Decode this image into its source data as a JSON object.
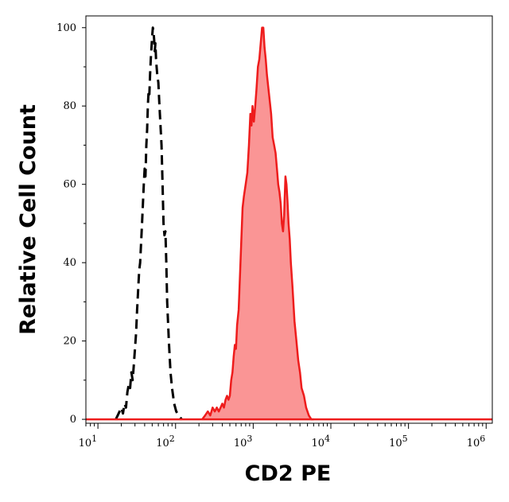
{
  "chart_data": {
    "type": "area",
    "xlabel": "CD2 PE",
    "ylabel": "Relative Cell Count",
    "x_scale": "log",
    "xlim": [
      7,
      1200000
    ],
    "ylim": [
      -1,
      103
    ],
    "x_ticks": [
      {
        "base": "10",
        "exp": "1",
        "value": 10
      },
      {
        "base": "10",
        "exp": "2",
        "value": 100
      },
      {
        "base": "10",
        "exp": "3",
        "value": 1000
      },
      {
        "base": "10",
        "exp": "4",
        "value": 10000
      },
      {
        "base": "10",
        "exp": "5",
        "value": 100000
      },
      {
        "base": "10",
        "exp": "6",
        "value": 1000000
      }
    ],
    "y_ticks": [
      {
        "label": "0",
        "value": 0
      },
      {
        "label": "20",
        "value": 20
      },
      {
        "label": "40",
        "value": 40
      },
      {
        "label": "60",
        "value": 60
      },
      {
        "label": "80",
        "value": 80
      },
      {
        "label": "100",
        "value": 100
      }
    ],
    "grid": false,
    "legend": "none",
    "series": [
      {
        "style": "dashed",
        "color": "#000000",
        "fill": "none",
        "points": [
          [
            17,
            0
          ],
          [
            18,
            1
          ],
          [
            19,
            2
          ],
          [
            20,
            3
          ],
          [
            21,
            1.5
          ],
          [
            22,
            4
          ],
          [
            23,
            3
          ],
          [
            24,
            7
          ],
          [
            25,
            9
          ],
          [
            26,
            8
          ],
          [
            27,
            12
          ],
          [
            28,
            10
          ],
          [
            29,
            14
          ],
          [
            30,
            18
          ],
          [
            31,
            22
          ],
          [
            32,
            28
          ],
          [
            33,
            33
          ],
          [
            34,
            38
          ],
          [
            35,
            40
          ],
          [
            36,
            45
          ],
          [
            37,
            50
          ],
          [
            38,
            55
          ],
          [
            39,
            60
          ],
          [
            40,
            64
          ],
          [
            41,
            62
          ],
          [
            42,
            70
          ],
          [
            43,
            74
          ],
          [
            44,
            80
          ],
          [
            45,
            84
          ],
          [
            46,
            83
          ],
          [
            47,
            88
          ],
          [
            48,
            92
          ],
          [
            49,
            95
          ],
          [
            50,
            98
          ],
          [
            51,
            100
          ],
          [
            52,
            99
          ],
          [
            53,
            97
          ],
          [
            54,
            94
          ],
          [
            55,
            96
          ],
          [
            56,
            92
          ],
          [
            57,
            90
          ],
          [
            58,
            88
          ],
          [
            60,
            86
          ],
          [
            62,
            80
          ],
          [
            64,
            75
          ],
          [
            66,
            70
          ],
          [
            68,
            60
          ],
          [
            70,
            50
          ],
          [
            72,
            47
          ],
          [
            74,
            48
          ],
          [
            76,
            40
          ],
          [
            78,
            30
          ],
          [
            82,
            20
          ],
          [
            86,
            12
          ],
          [
            90,
            8
          ],
          [
            96,
            4
          ],
          [
            102,
            2
          ],
          [
            110,
            1
          ],
          [
            120,
            0
          ]
        ]
      },
      {
        "style": "solid",
        "color": "#ee1c1c",
        "fill": "#fa9595",
        "points": [
          [
            220,
            0
          ],
          [
            240,
            1
          ],
          [
            260,
            2
          ],
          [
            280,
            1
          ],
          [
            300,
            3
          ],
          [
            320,
            2
          ],
          [
            340,
            3
          ],
          [
            360,
            2
          ],
          [
            380,
            3
          ],
          [
            400,
            4
          ],
          [
            420,
            3
          ],
          [
            440,
            5
          ],
          [
            460,
            6
          ],
          [
            480,
            5
          ],
          [
            500,
            6
          ],
          [
            520,
            10
          ],
          [
            540,
            12
          ],
          [
            560,
            16
          ],
          [
            580,
            19
          ],
          [
            600,
            18
          ],
          [
            620,
            24
          ],
          [
            650,
            28
          ],
          [
            680,
            38
          ],
          [
            700,
            45
          ],
          [
            730,
            54
          ],
          [
            760,
            57
          ],
          [
            800,
            60
          ],
          [
            840,
            63
          ],
          [
            880,
            70
          ],
          [
            920,
            78
          ],
          [
            950,
            75
          ],
          [
            980,
            80
          ],
          [
            1020,
            76
          ],
          [
            1060,
            80
          ],
          [
            1100,
            84
          ],
          [
            1150,
            90
          ],
          [
            1200,
            92
          ],
          [
            1250,
            96
          ],
          [
            1300,
            100
          ],
          [
            1350,
            100
          ],
          [
            1400,
            95
          ],
          [
            1450,
            92
          ],
          [
            1500,
            88
          ],
          [
            1560,
            85
          ],
          [
            1620,
            82
          ],
          [
            1700,
            78
          ],
          [
            1780,
            72
          ],
          [
            1860,
            70
          ],
          [
            1940,
            68
          ],
          [
            2020,
            64
          ],
          [
            2100,
            60
          ],
          [
            2180,
            58
          ],
          [
            2260,
            55
          ],
          [
            2340,
            50
          ],
          [
            2420,
            48
          ],
          [
            2500,
            52
          ],
          [
            2600,
            62
          ],
          [
            2680,
            60
          ],
          [
            2760,
            56
          ],
          [
            2850,
            50
          ],
          [
            2950,
            46
          ],
          [
            3050,
            40
          ],
          [
            3200,
            34
          ],
          [
            3400,
            25
          ],
          [
            3600,
            20
          ],
          [
            3800,
            15
          ],
          [
            4000,
            12
          ],
          [
            4200,
            8
          ],
          [
            4500,
            6
          ],
          [
            4800,
            3
          ],
          [
            5200,
            1
          ],
          [
            5600,
            0
          ],
          [
            6000,
            0
          ]
        ]
      }
    ]
  }
}
